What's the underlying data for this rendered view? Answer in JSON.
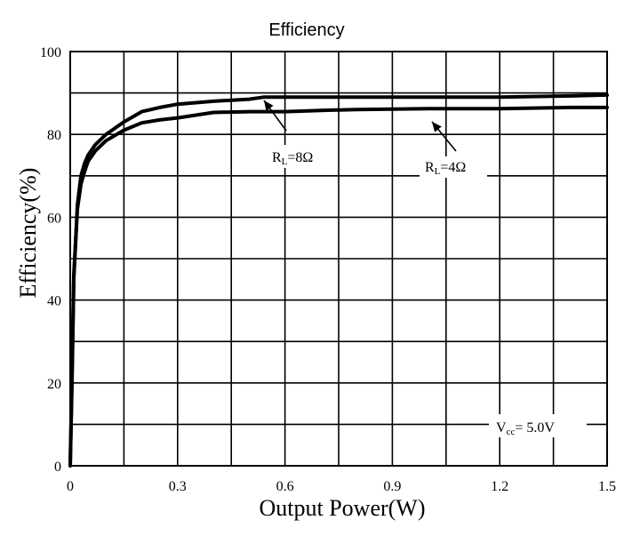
{
  "chart_data": {
    "type": "line",
    "title": "Efficiency",
    "xlabel": "Output Power(W)",
    "ylabel": "Efficiency(%)",
    "xlim": [
      0,
      1.5
    ],
    "ylim": [
      0,
      100
    ],
    "xticks": [
      0,
      0.3,
      0.6,
      0.9,
      1.2,
      1.5
    ],
    "xtick_labels": [
      "0",
      "0.3",
      "0.6",
      "0.9",
      "1.2",
      "1.5"
    ],
    "yticks": [
      0,
      20,
      40,
      60,
      80,
      100
    ],
    "ytick_labels": [
      "0",
      "20",
      "40",
      "60",
      "80",
      "100"
    ],
    "grid": true,
    "series": [
      {
        "name": "RL=8Ω",
        "label_main": "R",
        "label_sub": "L",
        "label_rest": "=8Ω",
        "x": [
          0,
          0.005,
          0.01,
          0.02,
          0.03,
          0.04,
          0.05,
          0.07,
          0.1,
          0.15,
          0.2,
          0.25,
          0.3,
          0.4,
          0.5,
          0.54,
          0.6,
          0.8,
          1.0,
          1.2,
          1.4,
          1.5
        ],
        "y": [
          0,
          20,
          45,
          63,
          70,
          73,
          75,
          77.5,
          80,
          83,
          85.5,
          86.5,
          87.3,
          88,
          88.5,
          89,
          89,
          89,
          89,
          89,
          89.3,
          89.5
        ]
      },
      {
        "name": "RL=4Ω",
        "label_main": "R",
        "label_sub": "L",
        "label_rest": "=4Ω",
        "x": [
          0,
          0.005,
          0.01,
          0.02,
          0.03,
          0.04,
          0.05,
          0.07,
          0.1,
          0.15,
          0.2,
          0.25,
          0.3,
          0.4,
          0.5,
          0.6,
          0.7,
          0.8,
          1.0,
          1.2,
          1.4,
          1.5
        ],
        "y": [
          0,
          22,
          46,
          62,
          68,
          71,
          73.5,
          76,
          78.5,
          81,
          82.8,
          83.5,
          84,
          85.3,
          85.5,
          85.5,
          85.8,
          86,
          86.2,
          86.2,
          86.5,
          86.5
        ]
      }
    ],
    "annotation": {
      "main": "V",
      "sub": "cc",
      "rest": "= 5.0V"
    }
  }
}
